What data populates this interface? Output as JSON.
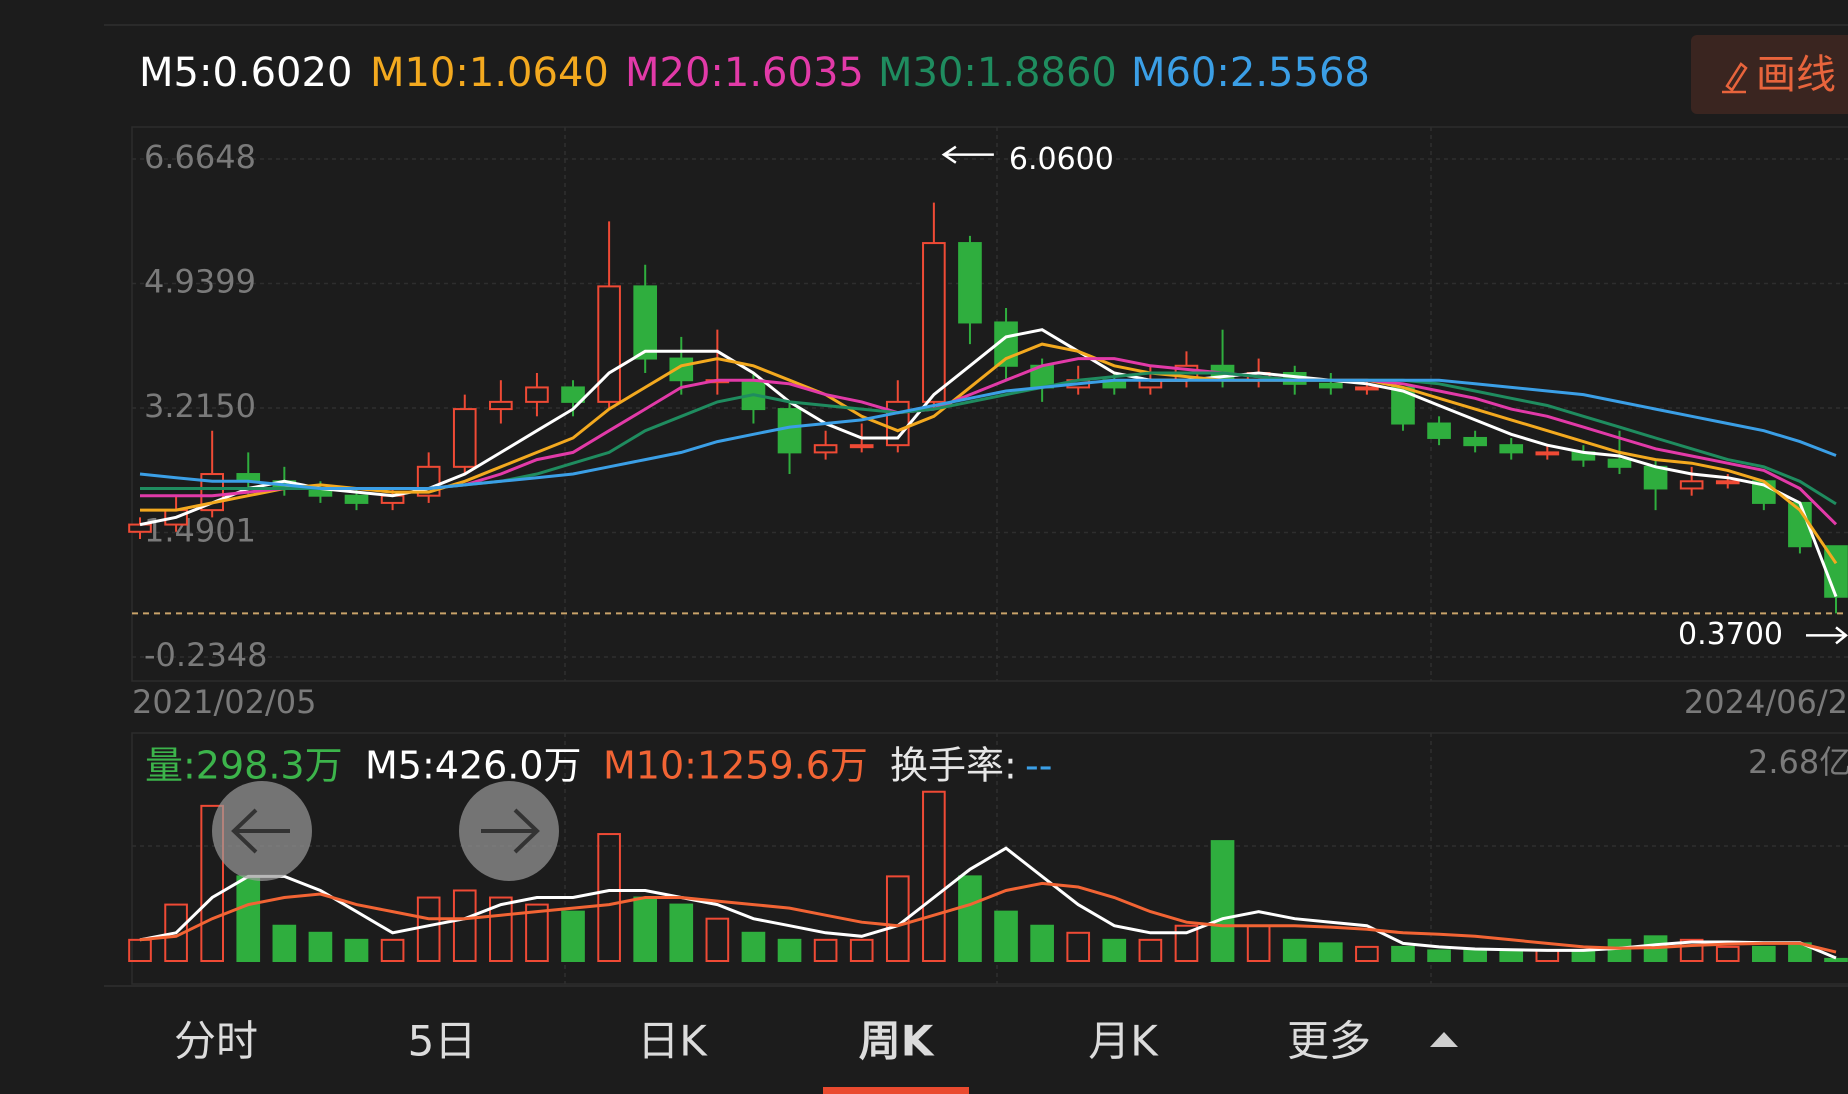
{
  "header": {
    "button": "画线"
  },
  "chart_data": [
    {
      "type": "candlestick",
      "categories": [
        "2021/02/05",
        null,
        null,
        null,
        null,
        null,
        null,
        null,
        null,
        null,
        null,
        null,
        null,
        null,
        null,
        null,
        null,
        null,
        null,
        null,
        null,
        null,
        null,
        null,
        null,
        null,
        null,
        null,
        null,
        null,
        null,
        null,
        null,
        null,
        null,
        null,
        null,
        null,
        null,
        null,
        null,
        null,
        null,
        null,
        null,
        null,
        null,
        "2024/06/2"
      ],
      "open": [
        1.5,
        1.6,
        1.8,
        2.3,
        2.2,
        2.1,
        2.0,
        1.9,
        2.0,
        2.4,
        3.2,
        3.3,
        3.5,
        3.3,
        4.9,
        3.9,
        3.6,
        3.6,
        3.2,
        2.6,
        2.7,
        2.7,
        3.3,
        5.5,
        4.4,
        3.8,
        3.5,
        3.6,
        3.5,
        3.6,
        3.8,
        3.6,
        3.7,
        3.55,
        3.5,
        3.5,
        3.0,
        2.8,
        2.7,
        2.6,
        2.6,
        2.5,
        2.4,
        2.1,
        2.2,
        2.2,
        1.9,
        1.3
      ],
      "high": [
        1.7,
        2.0,
        2.9,
        2.6,
        2.4,
        2.2,
        2.1,
        2.1,
        2.6,
        3.4,
        3.6,
        3.7,
        3.6,
        5.8,
        5.2,
        4.2,
        4.3,
        3.7,
        3.3,
        2.9,
        3.0,
        3.6,
        6.06,
        5.6,
        4.6,
        3.9,
        3.8,
        3.7,
        3.8,
        4.0,
        4.3,
        3.9,
        3.8,
        3.7,
        3.6,
        3.5,
        3.1,
        2.9,
        2.8,
        2.7,
        2.7,
        2.9,
        2.5,
        2.4,
        2.3,
        2.2,
        1.9,
        1.3
      ],
      "low": [
        1.4,
        1.5,
        1.7,
        2.0,
        2.0,
        1.9,
        1.8,
        1.8,
        1.9,
        2.3,
        3.0,
        3.1,
        3.1,
        3.2,
        3.7,
        3.4,
        3.4,
        3.0,
        2.3,
        2.5,
        2.6,
        2.6,
        3.2,
        4.1,
        3.6,
        3.3,
        3.4,
        3.4,
        3.4,
        3.5,
        3.5,
        3.5,
        3.4,
        3.4,
        3.4,
        2.9,
        2.7,
        2.6,
        2.5,
        2.5,
        2.4,
        2.3,
        1.8,
        2.0,
        2.1,
        1.8,
        1.2,
        0.37
      ],
      "close": [
        1.6,
        1.8,
        2.3,
        2.2,
        2.1,
        2.0,
        1.9,
        2.0,
        2.4,
        3.2,
        3.3,
        3.5,
        3.3,
        4.9,
        3.9,
        3.6,
        3.6,
        3.2,
        2.6,
        2.7,
        2.7,
        3.3,
        5.5,
        4.4,
        3.8,
        3.5,
        3.6,
        3.5,
        3.6,
        3.8,
        3.6,
        3.7,
        3.55,
        3.5,
        3.5,
        3.0,
        2.8,
        2.7,
        2.6,
        2.6,
        2.5,
        2.4,
        2.1,
        2.2,
        2.2,
        1.9,
        1.3,
        0.6
      ],
      "up_color": "#ef4a35",
      "down_color": "#2fae3e",
      "series": [
        {
          "name": "M5:0.6020",
          "color": "#ffffff",
          "values": [
            1.6,
            1.7,
            1.9,
            2.1,
            2.2,
            2.1,
            2.05,
            2.0,
            2.1,
            2.3,
            2.6,
            2.9,
            3.2,
            3.7,
            4.0,
            4.0,
            4.0,
            3.7,
            3.3,
            3.0,
            2.8,
            2.8,
            3.4,
            3.8,
            4.2,
            4.3,
            4.0,
            3.7,
            3.6,
            3.6,
            3.65,
            3.7,
            3.65,
            3.6,
            3.55,
            3.45,
            3.25,
            3.05,
            2.85,
            2.7,
            2.6,
            2.55,
            2.4,
            2.3,
            2.25,
            2.15,
            1.9,
            0.602
          ]
        },
        {
          "name": "M10:1.0640",
          "color": "#f3a91f",
          "values": [
            1.8,
            1.8,
            1.9,
            2.0,
            2.1,
            2.15,
            2.1,
            2.05,
            2.05,
            2.2,
            2.4,
            2.6,
            2.8,
            3.2,
            3.5,
            3.8,
            3.9,
            3.8,
            3.6,
            3.4,
            3.1,
            2.9,
            3.1,
            3.5,
            3.9,
            4.1,
            4.0,
            3.8,
            3.7,
            3.65,
            3.6,
            3.6,
            3.6,
            3.6,
            3.6,
            3.5,
            3.35,
            3.2,
            3.05,
            2.9,
            2.75,
            2.6,
            2.5,
            2.45,
            2.35,
            2.2,
            1.8,
            1.064
          ]
        },
        {
          "name": "M20:1.6035",
          "color": "#e23aa8",
          "values": [
            2.0,
            2.0,
            2.0,
            2.05,
            2.1,
            2.1,
            2.1,
            2.1,
            2.1,
            2.15,
            2.3,
            2.5,
            2.6,
            2.9,
            3.2,
            3.5,
            3.6,
            3.6,
            3.55,
            3.4,
            3.3,
            3.15,
            3.2,
            3.4,
            3.6,
            3.8,
            3.9,
            3.9,
            3.8,
            3.75,
            3.7,
            3.65,
            3.6,
            3.6,
            3.6,
            3.55,
            3.45,
            3.35,
            3.2,
            3.1,
            2.95,
            2.8,
            2.65,
            2.55,
            2.45,
            2.35,
            2.1,
            1.6035
          ]
        },
        {
          "name": "M30:1.8860",
          "color": "#1f8c5f",
          "values": [
            2.1,
            2.1,
            2.1,
            2.1,
            2.1,
            2.1,
            2.1,
            2.1,
            2.1,
            2.15,
            2.2,
            2.3,
            2.45,
            2.6,
            2.9,
            3.1,
            3.3,
            3.4,
            3.3,
            3.25,
            3.2,
            3.15,
            3.2,
            3.3,
            3.4,
            3.5,
            3.6,
            3.65,
            3.7,
            3.7,
            3.7,
            3.65,
            3.6,
            3.6,
            3.6,
            3.6,
            3.55,
            3.45,
            3.35,
            3.25,
            3.1,
            2.95,
            2.8,
            2.65,
            2.5,
            2.4,
            2.2,
            1.886
          ]
        },
        {
          "name": "M60:2.5568",
          "color": "#3b9fe6",
          "values": [
            2.3,
            2.25,
            2.2,
            2.2,
            2.15,
            2.1,
            2.1,
            2.1,
            2.1,
            2.15,
            2.2,
            2.25,
            2.3,
            2.4,
            2.5,
            2.6,
            2.75,
            2.85,
            2.95,
            3.0,
            3.05,
            3.15,
            3.25,
            3.35,
            3.45,
            3.5,
            3.55,
            3.6,
            3.6,
            3.6,
            3.6,
            3.6,
            3.6,
            3.6,
            3.6,
            3.6,
            3.6,
            3.55,
            3.5,
            3.45,
            3.4,
            3.3,
            3.2,
            3.1,
            3.0,
            2.9,
            2.75,
            2.5568
          ]
        }
      ],
      "ylim": [
        -0.2348,
        6.6648
      ],
      "yticks": [
        6.6648,
        4.9399,
        {
          "value": 3.215,
          "label": "3.2150"
        },
        1.4901,
        -0.2348
      ],
      "grid": true,
      "max_label": {
        "value": 6.06,
        "label": "6.0600"
      },
      "min_label": {
        "value": 0.37,
        "label": "0.3700"
      },
      "min_line_color": "#c9a36a"
    },
    {
      "type": "bar",
      "name": "量:298.3万",
      "name_color": "#3cb44b",
      "values": [
        3000,
        8000,
        22000,
        12000,
        5000,
        4000,
        3000,
        3000,
        9000,
        10000,
        9000,
        8000,
        7000,
        18000,
        9000,
        8000,
        6000,
        4000,
        3000,
        3000,
        3000,
        12000,
        24000,
        12000,
        7000,
        5000,
        4000,
        3000,
        3000,
        5000,
        17000,
        5000,
        3000,
        2500,
        2000,
        2000,
        1500,
        1500,
        1500,
        1500,
        1500,
        3000,
        3500,
        3000,
        2000,
        2000,
        2500,
        298.3
      ],
      "series": [
        {
          "name": "M5:426.0万",
          "color": "#ffffff",
          "values": [
            3000,
            4000,
            9000,
            12000,
            12000,
            10000,
            7000,
            4000,
            5000,
            6000,
            8000,
            9000,
            9000,
            10000,
            10000,
            9000,
            8000,
            6000,
            5000,
            4000,
            3500,
            5000,
            9000,
            13000,
            16000,
            12000,
            8000,
            5000,
            4000,
            4000,
            6000,
            7000,
            6000,
            5500,
            5000,
            2500,
            2000,
            1700,
            1600,
            1500,
            1500,
            1800,
            2300,
            2700,
            2700,
            2600,
            2600,
            426
          ]
        },
        {
          "name": "M10:1259.6万",
          "color": "#f26434",
          "values": [
            3000,
            3500,
            6000,
            8000,
            9000,
            9500,
            8000,
            7000,
            6000,
            6000,
            6500,
            7000,
            7500,
            8000,
            9000,
            9000,
            8500,
            8000,
            7500,
            6500,
            5500,
            5000,
            6500,
            8000,
            10000,
            11000,
            10500,
            9000,
            7000,
            5500,
            5000,
            5000,
            5000,
            4800,
            4500,
            4000,
            3800,
            3500,
            3000,
            2500,
            2000,
            1800,
            1900,
            2200,
            2400,
            2500,
            2500,
            1259.6
          ]
        }
      ],
      "ylim": [
        0,
        26800
      ],
      "yticks": [
        {
          "value": 26800,
          "label": "2.68亿"
        }
      ],
      "turnover_label": "换手率:",
      "turnover_value": "--",
      "turnover_color": "#3b9fe6"
    }
  ],
  "tabs": {
    "items": [
      "分时",
      "5日",
      "日K",
      "周K",
      "月K",
      "更多"
    ],
    "active": 3,
    "active_color": "#ea4a2f"
  }
}
